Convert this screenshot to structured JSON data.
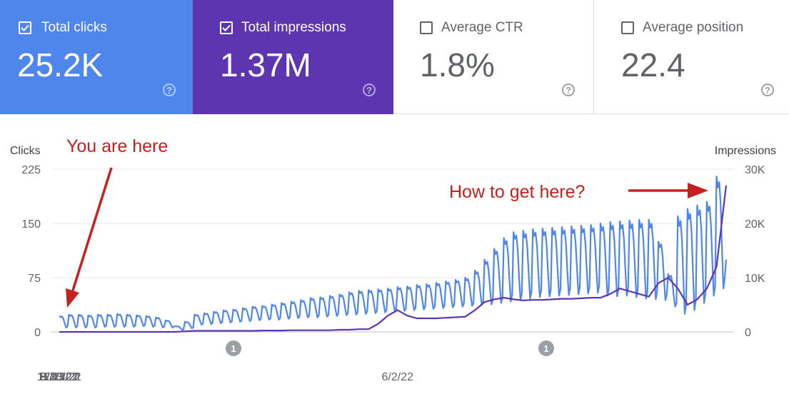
{
  "metrics": [
    {
      "label": "Total clicks",
      "value": "25.2K",
      "checked": true,
      "color": "#4f86ec"
    },
    {
      "label": "Total impressions",
      "value": "1.37M",
      "checked": true,
      "color": "#5e35b1"
    },
    {
      "label": "Average CTR",
      "value": "1.8%",
      "checked": false
    },
    {
      "label": "Average position",
      "value": "22.4",
      "checked": false
    }
  ],
  "help_symbol": "?",
  "annotations": {
    "left": "You are here",
    "right": "How to get here?",
    "color": "#c5221f"
  },
  "markers": [
    "1",
    "1"
  ],
  "chart_data": {
    "type": "line",
    "x": [
      "9/30/21",
      "10/7/21",
      "10/14/21",
      "10/21/21",
      "10/28/21",
      "11/4/21",
      "11/11/21",
      "11/18/21",
      "11/25/21",
      "12/2/21",
      "12/9/21",
      "12/16/21",
      "12/23/21",
      "12/30/21",
      "1/6/22",
      "1/13/22",
      "1/20/22",
      "1/27/22",
      "2/3/22",
      "2/10/22",
      "2/17/22",
      "2/24/22",
      "3/3/22",
      "3/10/22",
      "3/17/22",
      "3/24/22",
      "3/31/22",
      "4/7/22",
      "4/14/22",
      "4/21/22",
      "4/28/22",
      "5/5/22",
      "5/12/22",
      "5/19/22",
      "5/26/22",
      "6/2/22",
      "6/9/22",
      "6/16/22",
      "6/23/22",
      "6/30/22",
      "7/7/22",
      "7/14/22",
      "7/21/22",
      "7/28/22",
      "8/4/22",
      "8/11/22",
      "8/18/22",
      "8/25/22",
      "9/1/22",
      "9/8/22",
      "9/15/22",
      "9/22/22",
      "9/29/22",
      "10/6/22",
      "10/13/22",
      "10/20/22",
      "10/27/22",
      "11/3/22",
      "11/10/22",
      "11/17/22",
      "11/24/22",
      "12/1/22",
      "12/8/22",
      "12/15/22",
      "12/22/22",
      "12/29/22",
      "1/5/23",
      "1/12/23",
      "1/19/23",
      "1/26/23"
    ],
    "x_ticks": [
      "9/30/21",
      "12/21/21",
      "3/13/22",
      "6/2/22",
      "8/23/22",
      "11/13/22"
    ],
    "series": [
      {
        "name": "Clicks",
        "axis": "left",
        "color": "#4f86ec",
        "low": [
          6,
          6,
          6,
          6,
          7,
          7,
          7,
          7,
          8,
          7,
          6,
          6,
          3,
          5,
          10,
          11,
          12,
          13,
          14,
          15,
          16,
          17,
          17,
          18,
          19,
          20,
          20,
          21,
          22,
          23,
          24,
          25,
          26,
          27,
          28,
          29,
          30,
          31,
          32,
          33,
          34,
          35,
          36,
          37,
          38,
          40,
          42,
          44,
          46,
          48,
          49,
          50,
          51,
          52,
          53,
          54,
          50,
          49,
          50,
          48,
          46,
          45,
          44,
          35,
          25,
          30,
          40,
          50,
          60,
          95
        ],
        "high": [
          22,
          24,
          24,
          23,
          24,
          24,
          25,
          24,
          23,
          22,
          20,
          16,
          8,
          14,
          24,
          26,
          28,
          30,
          31,
          33,
          35,
          36,
          38,
          40,
          42,
          44,
          47,
          48,
          50,
          52,
          55,
          57,
          58,
          59,
          60,
          62,
          63,
          65,
          66,
          68,
          70,
          72,
          75,
          85,
          100,
          115,
          130,
          138,
          140,
          142,
          143,
          144,
          145,
          146,
          147,
          148,
          150,
          152,
          153,
          154,
          155,
          155,
          125,
          80,
          160,
          170,
          175,
          180,
          215,
          100
        ]
      },
      {
        "name": "Impressions",
        "axis": "right",
        "color": "#5e35b1",
        "values": [
          0,
          0,
          0,
          0,
          0,
          0,
          0,
          0,
          0,
          0,
          0,
          0,
          0,
          100,
          200,
          200,
          200,
          200,
          200,
          200,
          200,
          250,
          250,
          250,
          300,
          300,
          300,
          300,
          300,
          400,
          400,
          500,
          500,
          1500,
          3000,
          4000,
          3000,
          2500,
          2500,
          2500,
          2600,
          2700,
          2800,
          4000,
          5500,
          6000,
          6300,
          6000,
          5800,
          5900,
          5900,
          6000,
          6100,
          6100,
          6200,
          6300,
          6300,
          7000,
          8000,
          7500,
          7000,
          6500,
          9000,
          10000,
          8000,
          5000,
          6000,
          8000,
          12000,
          27000
        ]
      }
    ],
    "y_left": {
      "label": "Clicks",
      "ticks": [
        "225",
        "150",
        "75",
        "0"
      ],
      "range": [
        0,
        225
      ]
    },
    "y_right": {
      "label": "Impressions",
      "ticks": [
        "30K",
        "20K",
        "10K",
        "0"
      ],
      "range": [
        0,
        30000
      ]
    },
    "grid": true
  }
}
